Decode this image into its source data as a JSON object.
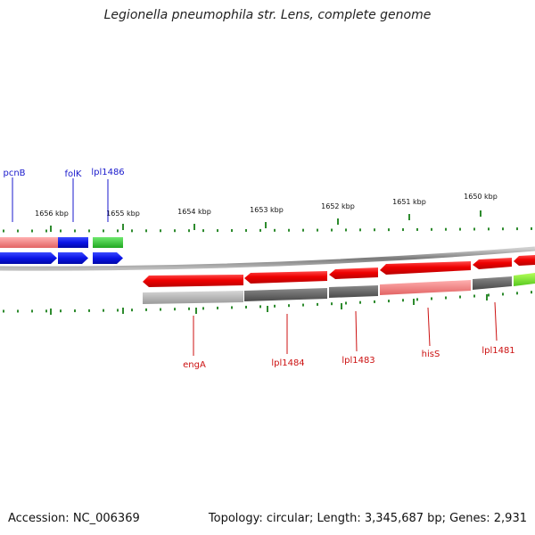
{
  "title": "Legionella pneumophila str. Lens, complete genome",
  "footer": {
    "accession": "Accession: NC_006369",
    "topology": "Topology: circular; Length: 3,345,687 bp; Genes: 2,931"
  },
  "colors": {
    "forward_cds": "#0a14e6",
    "reverse_cds": "#ea0a0a",
    "forward_label": "#1a1acc",
    "reverse_label": "#cc1111",
    "tick": "#2e8b2e",
    "backbone": "#8a8a8a"
  },
  "ticks": [
    "1656 kbp",
    "1655 kbp",
    "1654 kbp",
    "1653 kbp",
    "1652 kbp",
    "1651 kbp",
    "1650 kbp"
  ],
  "forward_genes": [
    {
      "label": "pcnB"
    },
    {
      "label": "folK"
    },
    {
      "label": "lpl1486"
    }
  ],
  "reverse_genes": [
    {
      "label": "engA"
    },
    {
      "label": "lpl1484"
    },
    {
      "label": "lpl1483"
    },
    {
      "label": "hisS"
    },
    {
      "label": "lpl1481"
    }
  ]
}
